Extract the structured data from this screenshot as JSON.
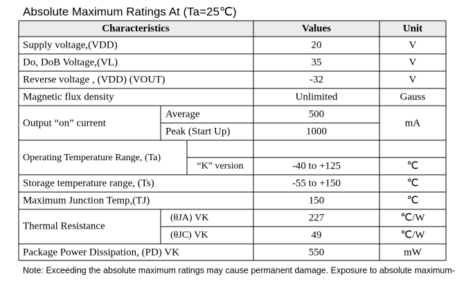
{
  "title": "Absolute Maximum Ratings At (Ta=25℃)",
  "table": {
    "header": [
      "Characteristics",
      "Values",
      "Unit"
    ],
    "rows": [
      [
        "Supply voltage,(VDD)",
        "20",
        "V"
      ],
      [
        "Do, DoB Voltage,(VL)",
        "35",
        "V"
      ],
      [
        "Reverse voltage , (VDD) (VOUT)",
        "-32",
        "V"
      ],
      [
        "Magnetic flux density",
        "Unlimited",
        "Gauss"
      ],
      {
        "label": "Output “on” current",
        "sub": [
          "Average",
          "Peak (Start Up)"
        ],
        "values": [
          "500",
          "1000"
        ],
        "unit": "mA"
      },
      {
        "label": "Operating Temperature Range, (Ta)",
        "sub": [
          "“K” version"
        ],
        "values": [
          "-40 to +125"
        ],
        "unit": "℃"
      },
      [
        "Storage temperature range, (Ts)",
        "-55 to +150",
        "℃"
      ],
      [
        "Maximum Junction Temp,(TJ)",
        "150",
        "℃"
      ],
      {
        "label": "Thermal Resistance",
        "sub": [
          "(θJA) VK",
          "(θJC) VK"
        ],
        "values": [
          "227",
          "49"
        ],
        "unit": [
          "℃/W",
          "℃/W"
        ]
      },
      [
        "Package Power Dissipation, (PD) VK",
        "550",
        "mW"
      ]
    ]
  },
  "note": "Note: Exceeding the absolute maximum ratings may cause permanent damage. Exposure to absolute maximum-"
}
